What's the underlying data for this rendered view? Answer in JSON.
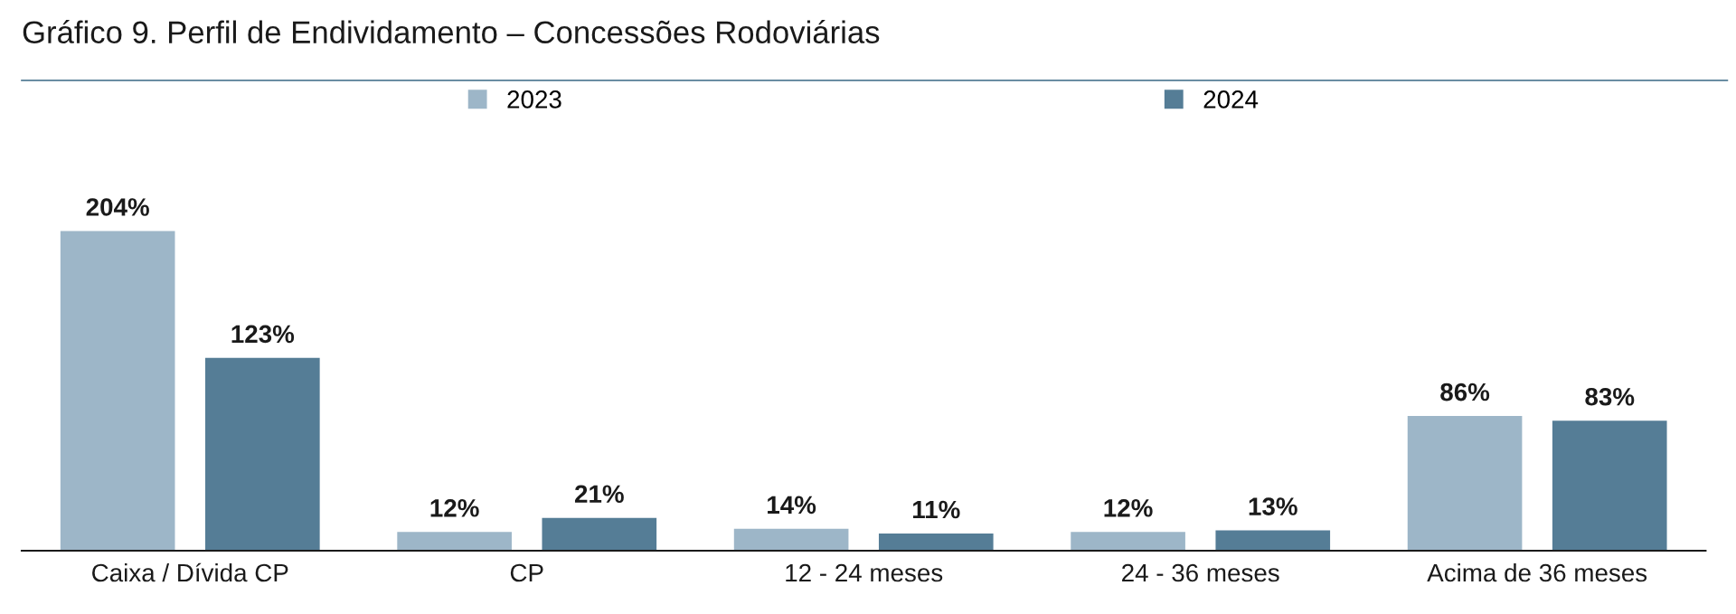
{
  "chart_data": {
    "type": "bar",
    "title": "Gráfico 9. Perfil de Endividamento – Concessões Rodoviárias",
    "categories": [
      "Caixa / Dívida CP",
      "CP",
      "12 - 24 meses",
      "24 - 36 meses",
      "Acima de 36 meses"
    ],
    "series": [
      {
        "name": "2023",
        "color": "#9db6c8",
        "values": [
          204,
          12,
          14,
          12,
          86
        ],
        "value_labels": [
          "204%",
          "12%",
          "14%",
          "12%",
          "86%"
        ]
      },
      {
        "name": "2024",
        "color": "#557d96",
        "values": [
          123,
          21,
          11,
          13,
          83
        ],
        "value_labels": [
          "123%",
          "21%",
          "11%",
          "13%",
          "83%"
        ]
      }
    ],
    "legend": "top",
    "grid": false
  }
}
